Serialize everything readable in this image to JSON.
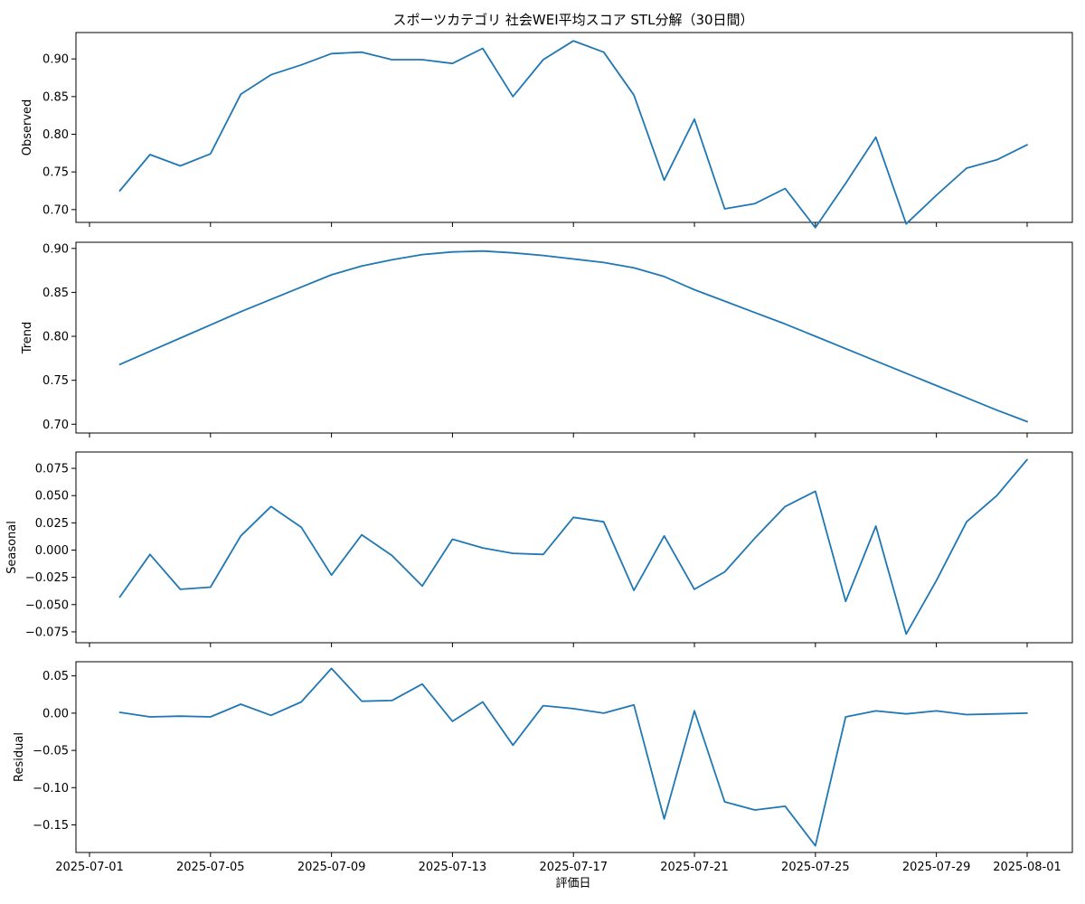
{
  "chart_data": {
    "type": "line",
    "title": "スポーツカテゴリ 社会WEI平均スコア STL分解（30日間）",
    "xlabel": "評価日",
    "line_color": "#1f77b4",
    "x": [
      "2025-07-02",
      "2025-07-03",
      "2025-07-04",
      "2025-07-05",
      "2025-07-06",
      "2025-07-07",
      "2025-07-08",
      "2025-07-09",
      "2025-07-10",
      "2025-07-11",
      "2025-07-12",
      "2025-07-13",
      "2025-07-14",
      "2025-07-15",
      "2025-07-16",
      "2025-07-17",
      "2025-07-18",
      "2025-07-19",
      "2025-07-20",
      "2025-07-21",
      "2025-07-22",
      "2025-07-23",
      "2025-07-24",
      "2025-07-25",
      "2025-07-26",
      "2025-07-27",
      "2025-07-28",
      "2025-07-29",
      "2025-07-30",
      "2025-07-31",
      "2025-08-01"
    ],
    "x_ticks": [
      "2025-07-01",
      "2025-07-05",
      "2025-07-09",
      "2025-07-13",
      "2025-07-17",
      "2025-07-21",
      "2025-07-25",
      "2025-07-29",
      "2025-08-01"
    ],
    "panels": [
      {
        "ylabel": "Observed",
        "ylim": [
          0.683,
          0.935
        ],
        "yticks": [
          0.7,
          0.75,
          0.8,
          0.85,
          0.9
        ],
        "ytick_labels": [
          "0.70",
          "0.75",
          "0.80",
          "0.85",
          "0.90"
        ],
        "values": [
          0.725,
          0.773,
          0.758,
          0.774,
          0.853,
          0.879,
          0.892,
          0.907,
          0.909,
          0.899,
          0.899,
          0.894,
          0.914,
          0.85,
          0.899,
          0.924,
          0.909,
          0.852,
          0.739,
          0.82,
          0.701,
          0.708,
          0.728,
          0.676,
          0.735,
          0.796,
          0.681,
          0.719,
          0.755,
          0.766,
          0.786
        ]
      },
      {
        "ylabel": "Trend",
        "ylim": [
          0.69,
          0.907
        ],
        "yticks": [
          0.7,
          0.75,
          0.8,
          0.85,
          0.9
        ],
        "ytick_labels": [
          "0.70",
          "0.75",
          "0.80",
          "0.85",
          "0.90"
        ],
        "values": [
          0.768,
          0.783,
          0.798,
          0.813,
          0.828,
          0.842,
          0.856,
          0.87,
          0.88,
          0.887,
          0.893,
          0.896,
          0.897,
          0.895,
          0.892,
          0.888,
          0.884,
          0.878,
          0.868,
          0.853,
          0.84,
          0.827,
          0.814,
          0.8,
          0.786,
          0.772,
          0.758,
          0.744,
          0.73,
          0.716,
          0.703
        ]
      },
      {
        "ylabel": "Seasonal",
        "ylim": [
          -0.085,
          0.09
        ],
        "yticks": [
          -0.075,
          -0.05,
          -0.025,
          0.0,
          0.025,
          0.05,
          0.075
        ],
        "ytick_labels": [
          "−0.075",
          "−0.050",
          "−0.025",
          "0.000",
          "0.025",
          "0.050",
          "0.075"
        ],
        "values": [
          -0.043,
          -0.004,
          -0.036,
          -0.034,
          0.013,
          0.04,
          0.021,
          -0.023,
          0.014,
          -0.005,
          -0.033,
          0.01,
          0.002,
          -0.003,
          -0.004,
          0.03,
          0.026,
          -0.037,
          0.013,
          -0.036,
          -0.02,
          0.011,
          0.04,
          0.054,
          -0.047,
          0.022,
          -0.077,
          -0.028,
          0.026,
          0.05,
          0.083
        ]
      },
      {
        "ylabel": "Residual",
        "ylim": [
          -0.187,
          0.069
        ],
        "yticks": [
          -0.15,
          -0.1,
          -0.05,
          0.0,
          0.05
        ],
        "ytick_labels": [
          "−0.15",
          "−0.10",
          "−0.05",
          "0.00",
          "0.05"
        ],
        "values": [
          0.001,
          -0.005,
          -0.004,
          -0.005,
          0.012,
          -0.003,
          0.015,
          0.06,
          0.016,
          0.017,
          0.039,
          -0.011,
          0.015,
          -0.043,
          0.01,
          0.006,
          0.0,
          0.011,
          -0.142,
          0.003,
          -0.119,
          -0.13,
          -0.125,
          -0.178,
          -0.005,
          0.003,
          -0.001,
          0.003,
          -0.002,
          -0.001,
          0.0
        ]
      }
    ]
  }
}
